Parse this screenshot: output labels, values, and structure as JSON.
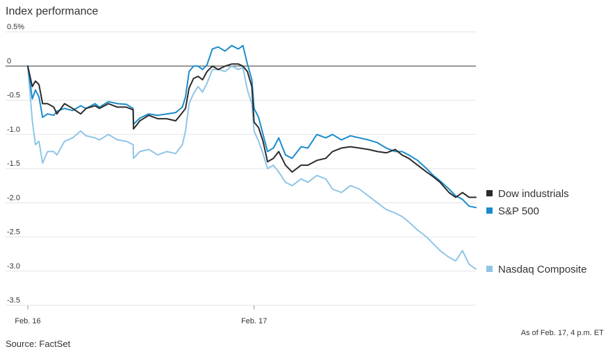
{
  "chart_data": {
    "type": "line",
    "title": "Index performance",
    "xlabel": "",
    "ylabel": "",
    "x_ticks": [
      "Feb. 16",
      "Feb. 17"
    ],
    "y_ticks": [
      "0.5%",
      "0",
      "-0.5",
      "-1.0",
      "-1.5",
      "-2.0",
      "-2.5",
      "-3.0",
      "-3.5"
    ],
    "ylim": [
      -3.5,
      0.5
    ],
    "grid": true,
    "legend_position": "right",
    "note": "As of Feb. 17, 4 p.m. ET",
    "source": "Source: FactSet",
    "series": [
      {
        "name": "Dow industrials",
        "color": "#2b2b2b",
        "points": [
          [
            0.0,
            0.0
          ],
          [
            0.01,
            -0.3
          ],
          [
            0.017,
            -0.22
          ],
          [
            0.025,
            -0.27
          ],
          [
            0.033,
            -0.55
          ],
          [
            0.044,
            -0.55
          ],
          [
            0.058,
            -0.6
          ],
          [
            0.065,
            -0.7
          ],
          [
            0.082,
            -0.55
          ],
          [
            0.1,
            -0.62
          ],
          [
            0.118,
            -0.7
          ],
          [
            0.13,
            -0.62
          ],
          [
            0.15,
            -0.58
          ],
          [
            0.16,
            -0.62
          ],
          [
            0.18,
            -0.55
          ],
          [
            0.2,
            -0.6
          ],
          [
            0.22,
            -0.6
          ],
          [
            0.235,
            -0.64
          ],
          [
            0.236,
            -0.92
          ],
          [
            0.25,
            -0.8
          ],
          [
            0.27,
            -0.72
          ],
          [
            0.29,
            -0.77
          ],
          [
            0.31,
            -0.77
          ],
          [
            0.33,
            -0.8
          ],
          [
            0.345,
            -0.68
          ],
          [
            0.352,
            -0.62
          ],
          [
            0.36,
            -0.32
          ],
          [
            0.37,
            -0.18
          ],
          [
            0.38,
            -0.15
          ],
          [
            0.39,
            -0.2
          ],
          [
            0.4,
            -0.08
          ],
          [
            0.412,
            0.0
          ],
          [
            0.425,
            -0.05
          ],
          [
            0.44,
            0.0
          ],
          [
            0.455,
            0.03
          ],
          [
            0.47,
            0.03
          ],
          [
            0.48,
            0.0
          ],
          [
            0.49,
            -0.08
          ],
          [
            0.5,
            -0.3
          ],
          [
            0.505,
            -0.82
          ],
          [
            0.515,
            -0.9
          ],
          [
            0.525,
            -1.1
          ],
          [
            0.535,
            -1.4
          ],
          [
            0.548,
            -1.35
          ],
          [
            0.56,
            -1.25
          ],
          [
            0.575,
            -1.45
          ],
          [
            0.59,
            -1.55
          ],
          [
            0.61,
            -1.45
          ],
          [
            0.625,
            -1.45
          ],
          [
            0.645,
            -1.38
          ],
          [
            0.665,
            -1.35
          ],
          [
            0.68,
            -1.25
          ],
          [
            0.7,
            -1.2
          ],
          [
            0.72,
            -1.18
          ],
          [
            0.74,
            -1.2
          ],
          [
            0.76,
            -1.22
          ],
          [
            0.78,
            -1.25
          ],
          [
            0.8,
            -1.27
          ],
          [
            0.82,
            -1.22
          ],
          [
            0.835,
            -1.3
          ],
          [
            0.85,
            -1.35
          ],
          [
            0.87,
            -1.45
          ],
          [
            0.89,
            -1.55
          ],
          [
            0.905,
            -1.62
          ],
          [
            0.92,
            -1.7
          ],
          [
            0.94,
            -1.85
          ],
          [
            0.955,
            -1.92
          ],
          [
            0.97,
            -1.85
          ],
          [
            0.985,
            -1.92
          ],
          [
            1.0,
            -1.92
          ]
        ]
      },
      {
        "name": "S&P 500",
        "color": "#1a8ccb",
        "points": [
          [
            0.0,
            0.0
          ],
          [
            0.01,
            -0.48
          ],
          [
            0.017,
            -0.35
          ],
          [
            0.025,
            -0.45
          ],
          [
            0.033,
            -0.75
          ],
          [
            0.044,
            -0.7
          ],
          [
            0.058,
            -0.72
          ],
          [
            0.065,
            -0.66
          ],
          [
            0.082,
            -0.62
          ],
          [
            0.1,
            -0.65
          ],
          [
            0.118,
            -0.58
          ],
          [
            0.13,
            -0.62
          ],
          [
            0.15,
            -0.55
          ],
          [
            0.16,
            -0.6
          ],
          [
            0.18,
            -0.52
          ],
          [
            0.2,
            -0.55
          ],
          [
            0.22,
            -0.56
          ],
          [
            0.235,
            -0.62
          ],
          [
            0.236,
            -0.85
          ],
          [
            0.25,
            -0.76
          ],
          [
            0.27,
            -0.7
          ],
          [
            0.29,
            -0.72
          ],
          [
            0.31,
            -0.7
          ],
          [
            0.33,
            -0.68
          ],
          [
            0.345,
            -0.6
          ],
          [
            0.352,
            -0.45
          ],
          [
            0.36,
            -0.08
          ],
          [
            0.37,
            0.0
          ],
          [
            0.38,
            0.0
          ],
          [
            0.39,
            -0.05
          ],
          [
            0.4,
            0.02
          ],
          [
            0.412,
            0.25
          ],
          [
            0.425,
            0.28
          ],
          [
            0.44,
            0.22
          ],
          [
            0.455,
            0.3
          ],
          [
            0.47,
            0.25
          ],
          [
            0.48,
            0.3
          ],
          [
            0.49,
            0.03
          ],
          [
            0.5,
            -0.2
          ],
          [
            0.505,
            -0.62
          ],
          [
            0.515,
            -0.75
          ],
          [
            0.525,
            -1.0
          ],
          [
            0.535,
            -1.25
          ],
          [
            0.548,
            -1.2
          ],
          [
            0.56,
            -1.05
          ],
          [
            0.575,
            -1.3
          ],
          [
            0.59,
            -1.35
          ],
          [
            0.61,
            -1.18
          ],
          [
            0.625,
            -1.2
          ],
          [
            0.645,
            -1.0
          ],
          [
            0.665,
            -1.05
          ],
          [
            0.68,
            -1.0
          ],
          [
            0.7,
            -1.08
          ],
          [
            0.72,
            -1.02
          ],
          [
            0.74,
            -1.05
          ],
          [
            0.76,
            -1.08
          ],
          [
            0.78,
            -1.12
          ],
          [
            0.8,
            -1.2
          ],
          [
            0.82,
            -1.25
          ],
          [
            0.835,
            -1.25
          ],
          [
            0.85,
            -1.3
          ],
          [
            0.87,
            -1.38
          ],
          [
            0.89,
            -1.5
          ],
          [
            0.905,
            -1.6
          ],
          [
            0.92,
            -1.68
          ],
          [
            0.94,
            -1.8
          ],
          [
            0.955,
            -1.9
          ],
          [
            0.97,
            -1.95
          ],
          [
            0.985,
            -2.05
          ],
          [
            1.0,
            -2.07
          ]
        ]
      },
      {
        "name": "Nasdaq Composite",
        "color": "#8ec5e6",
        "points": [
          [
            0.0,
            0.0
          ],
          [
            0.01,
            -0.8
          ],
          [
            0.017,
            -1.15
          ],
          [
            0.025,
            -1.1
          ],
          [
            0.033,
            -1.42
          ],
          [
            0.044,
            -1.25
          ],
          [
            0.058,
            -1.25
          ],
          [
            0.065,
            -1.3
          ],
          [
            0.082,
            -1.1
          ],
          [
            0.1,
            -1.05
          ],
          [
            0.118,
            -0.95
          ],
          [
            0.13,
            -1.02
          ],
          [
            0.15,
            -1.05
          ],
          [
            0.16,
            -1.08
          ],
          [
            0.18,
            -1.0
          ],
          [
            0.2,
            -1.08
          ],
          [
            0.22,
            -1.1
          ],
          [
            0.235,
            -1.15
          ],
          [
            0.236,
            -1.35
          ],
          [
            0.25,
            -1.25
          ],
          [
            0.27,
            -1.22
          ],
          [
            0.29,
            -1.3
          ],
          [
            0.31,
            -1.25
          ],
          [
            0.33,
            -1.28
          ],
          [
            0.345,
            -1.15
          ],
          [
            0.352,
            -0.95
          ],
          [
            0.36,
            -0.55
          ],
          [
            0.37,
            -0.4
          ],
          [
            0.38,
            -0.3
          ],
          [
            0.39,
            -0.38
          ],
          [
            0.4,
            -0.25
          ],
          [
            0.412,
            -0.05
          ],
          [
            0.425,
            -0.05
          ],
          [
            0.44,
            -0.08
          ],
          [
            0.455,
            0.0
          ],
          [
            0.47,
            -0.05
          ],
          [
            0.48,
            -0.02
          ],
          [
            0.49,
            -0.35
          ],
          [
            0.5,
            -0.55
          ],
          [
            0.505,
            -0.95
          ],
          [
            0.515,
            -1.1
          ],
          [
            0.525,
            -1.28
          ],
          [
            0.535,
            -1.5
          ],
          [
            0.548,
            -1.45
          ],
          [
            0.56,
            -1.55
          ],
          [
            0.575,
            -1.7
          ],
          [
            0.59,
            -1.75
          ],
          [
            0.61,
            -1.65
          ],
          [
            0.625,
            -1.7
          ],
          [
            0.645,
            -1.6
          ],
          [
            0.665,
            -1.65
          ],
          [
            0.68,
            -1.8
          ],
          [
            0.7,
            -1.85
          ],
          [
            0.72,
            -1.75
          ],
          [
            0.74,
            -1.8
          ],
          [
            0.76,
            -1.9
          ],
          [
            0.78,
            -2.0
          ],
          [
            0.8,
            -2.1
          ],
          [
            0.82,
            -2.15
          ],
          [
            0.835,
            -2.2
          ],
          [
            0.85,
            -2.28
          ],
          [
            0.87,
            -2.4
          ],
          [
            0.89,
            -2.5
          ],
          [
            0.905,
            -2.6
          ],
          [
            0.92,
            -2.7
          ],
          [
            0.94,
            -2.8
          ],
          [
            0.955,
            -2.85
          ],
          [
            0.97,
            -2.7
          ],
          [
            0.985,
            -2.9
          ],
          [
            1.0,
            -2.97
          ]
        ]
      }
    ]
  }
}
